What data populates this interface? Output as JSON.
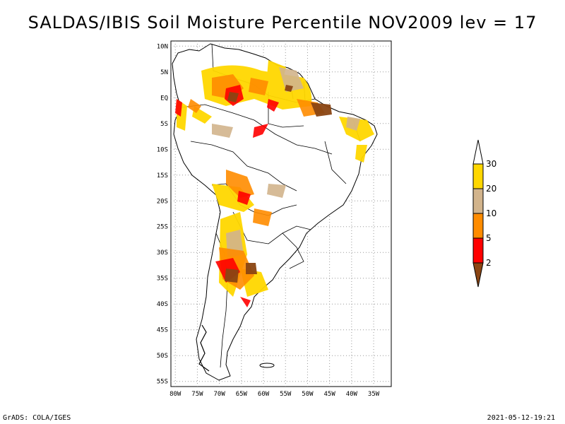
{
  "title": "SALDAS/IBIS Soil Moisture Percentile NOV2009 lev = 17",
  "map": {
    "lat_labels": [
      "10N",
      "5N",
      "EQ",
      "5S",
      "10S",
      "15S",
      "20S",
      "25S",
      "30S",
      "35S",
      "40S",
      "45S",
      "50S",
      "55S"
    ],
    "lon_labels": [
      "80W",
      "75W",
      "70W",
      "65W",
      "60W",
      "55W",
      "50W",
      "45W",
      "40W",
      "35W"
    ],
    "lat_values": [
      10,
      5,
      0,
      -5,
      -10,
      -15,
      -20,
      -25,
      -30,
      -35,
      -40,
      -45,
      -50,
      -55
    ],
    "lon_values": [
      -80,
      -75,
      -70,
      -65,
      -60,
      -55,
      -50,
      -45,
      -40,
      -35
    ],
    "extent": {
      "lon": [
        -81,
        -31
      ],
      "lat": [
        -56,
        11
      ]
    },
    "region": "South America"
  },
  "legend": {
    "labels": [
      "2",
      "5",
      "10",
      "20",
      "30"
    ],
    "colors": [
      "#8b4513",
      "#ff0000",
      "#ff8c00",
      "#d2b48c",
      "#ffd700",
      "#ffffff"
    ]
  },
  "footer": {
    "left": "GrADS: COLA/IGES",
    "right": "2021-05-12-19:21"
  }
}
